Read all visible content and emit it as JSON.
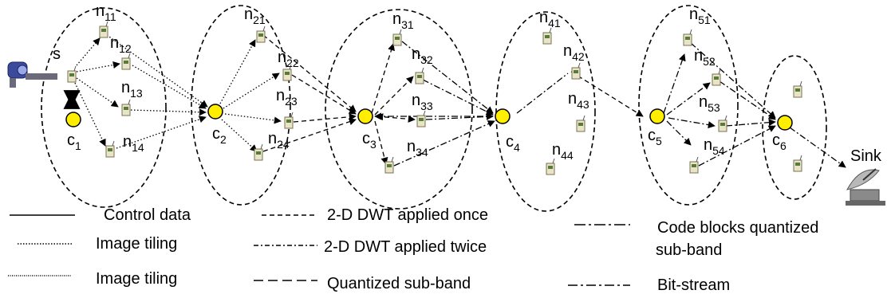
{
  "colors": {
    "cluster_head_fill": "#ffee00",
    "cluster_head_stroke": "#000000",
    "line": "#000000",
    "background": "#ffffff"
  },
  "icons": {
    "sensor": "sensor-node-icon",
    "camera": "camera-icon",
    "sink": "satellite-dish-icon"
  },
  "nodes": {
    "s": "s",
    "n11": "n11",
    "n12": "n12",
    "n13": "n13",
    "n14": "n14",
    "n21": "n21",
    "n22": "n22",
    "n23": "n23",
    "n24": "n24",
    "n31": "n31",
    "n32": "n32",
    "n33": "n33",
    "n34": "n34",
    "n41": "n41",
    "n42": "n42",
    "n43": "n43",
    "n44": "n44",
    "n51": "n51",
    "n52": "n52",
    "n53": "n53",
    "n54": "n54"
  },
  "cluster_heads": {
    "c1": "c1",
    "c2": "c2",
    "c3": "c3",
    "c4": "c4",
    "c5": "c5",
    "c6": "c6"
  },
  "sink_label": "Sink",
  "legend": [
    {
      "label": "Control data",
      "style": "solid"
    },
    {
      "label": "Image tiling",
      "style": "dotted"
    },
    {
      "label": "Image tiling",
      "style": "dotted"
    },
    {
      "label": "2-D DWT applied once",
      "style": "dashed"
    },
    {
      "label": "2-D DWT applied twice",
      "style": "dashdot"
    },
    {
      "label": "Quantized sub-band",
      "style": "longdash"
    },
    {
      "label": "Code blocks quantized",
      "style": "dashdot-long"
    },
    {
      "label": "sub-band",
      "style": "none"
    },
    {
      "label": "Bit-stream",
      "style": "dashdotdash"
    }
  ]
}
